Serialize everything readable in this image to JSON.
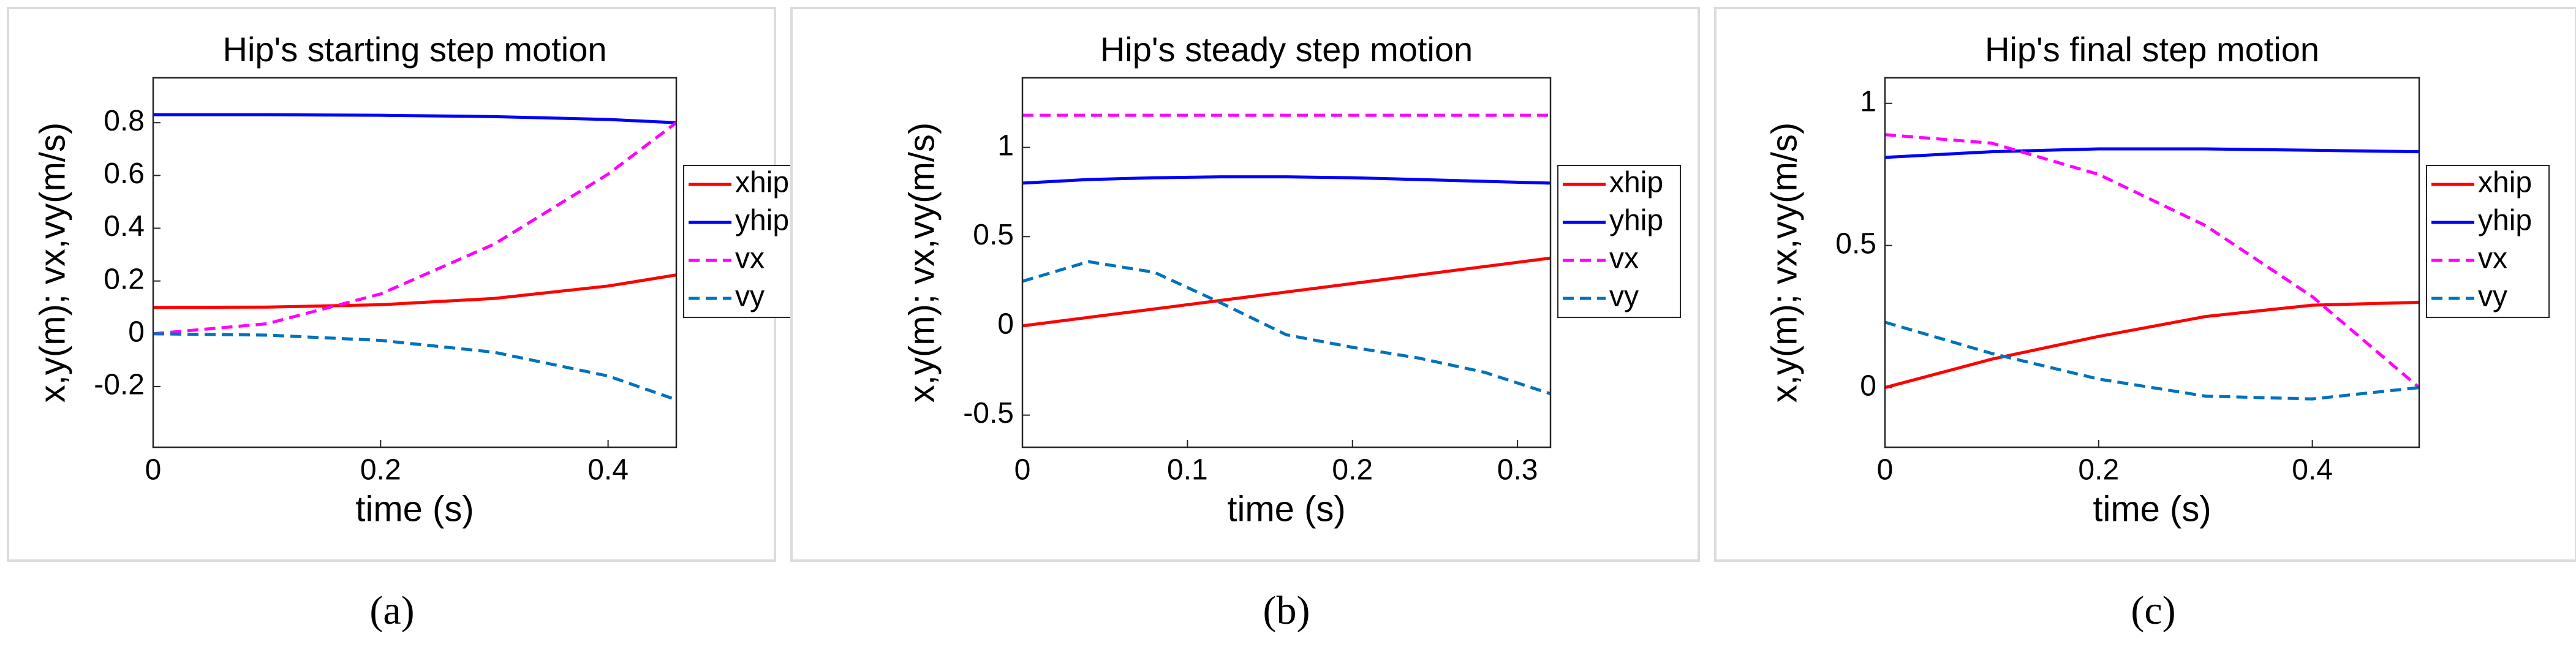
{
  "chart_data": [
    {
      "type": "line",
      "title": "Hip's starting step motion",
      "caption": "(a)",
      "xlabel": "time (s)",
      "ylabel": "x,y(m); vx,vy(m/s)",
      "x": [
        0,
        0.1,
        0.2,
        0.3,
        0.4,
        0.46
      ],
      "series": [
        {
          "name": "xhip",
          "color": "#ff0000",
          "line_style": "solid",
          "values": [
            0.1,
            0.101,
            0.11,
            0.134,
            0.181,
            0.223
          ]
        },
        {
          "name": "yhip",
          "color": "#0000ff",
          "line_style": "solid",
          "values": [
            0.83,
            0.83,
            0.828,
            0.823,
            0.812,
            0.8
          ]
        },
        {
          "name": "vx",
          "color": "#ff00ff",
          "line_style": "dashed",
          "values": [
            0,
            0.038,
            0.151,
            0.34,
            0.605,
            0.8
          ]
        },
        {
          "name": "vy",
          "color": "#0072bd",
          "line_style": "dashed",
          "values": [
            0,
            -0.005,
            -0.025,
            -0.07,
            -0.16,
            -0.25
          ]
        }
      ],
      "xlim": [
        0,
        0.46
      ],
      "xticks": [
        0,
        0.2,
        0.4
      ],
      "ylim": [
        -0.43,
        0.97
      ],
      "yticks": [
        -0.2,
        0,
        0.2,
        0.4,
        0.6,
        0.8
      ],
      "legend": "right-outside"
    },
    {
      "type": "line",
      "title": "Hip's steady step motion",
      "caption": "(b)",
      "xlabel": "time (s)",
      "ylabel": "x,y(m); vx,vy(m/s)",
      "x": [
        0,
        0.04,
        0.08,
        0.12,
        0.16,
        0.2,
        0.24,
        0.28,
        0.32
      ],
      "series": [
        {
          "name": "xhip",
          "color": "#ff0000",
          "line_style": "solid",
          "values": [
            0,
            0.0475,
            0.095,
            0.1425,
            0.19,
            0.2375,
            0.285,
            0.3325,
            0.38
          ]
        },
        {
          "name": "yhip",
          "color": "#0000ff",
          "line_style": "solid",
          "values": [
            0.8,
            0.82,
            0.83,
            0.835,
            0.835,
            0.83,
            0.82,
            0.81,
            0.8
          ]
        },
        {
          "name": "vx",
          "color": "#ff00ff",
          "line_style": "dashed",
          "values": [
            1.18,
            1.18,
            1.18,
            1.18,
            1.18,
            1.18,
            1.18,
            1.18,
            1.18
          ]
        },
        {
          "name": "vy",
          "color": "#0072bd",
          "line_style": "dashed",
          "values": [
            0.25,
            0.36,
            0.3,
            0.13,
            -0.05,
            -0.12,
            -0.18,
            -0.26,
            -0.38
          ]
        }
      ],
      "xlim": [
        0,
        0.32
      ],
      "xticks": [
        0,
        0.1,
        0.2,
        0.3
      ],
      "ylim": [
        -0.68,
        1.39
      ],
      "yticks": [
        -0.5,
        0,
        0.5,
        1
      ],
      "legend": "right-outside"
    },
    {
      "type": "line",
      "title": "Hip's final step motion",
      "caption": "(c)",
      "xlabel": "time (s)",
      "ylabel": "x,y(m); vx,vy(m/s)",
      "x": [
        0,
        0.1,
        0.2,
        0.3,
        0.4,
        0.5
      ],
      "series": [
        {
          "name": "xhip",
          "color": "#ff0000",
          "line_style": "solid",
          "values": [
            0,
            0.1,
            0.18,
            0.25,
            0.29,
            0.3
          ]
        },
        {
          "name": "yhip",
          "color": "#0000ff",
          "line_style": "solid",
          "values": [
            0.81,
            0.83,
            0.84,
            0.84,
            0.835,
            0.83
          ]
        },
        {
          "name": "vx",
          "color": "#ff00ff",
          "line_style": "dashed",
          "values": [
            0.89,
            0.86,
            0.75,
            0.57,
            0.32,
            0
          ]
        },
        {
          "name": "vy",
          "color": "#0072bd",
          "line_style": "dashed",
          "values": [
            0.23,
            0.12,
            0.03,
            -0.03,
            -0.04,
            0
          ]
        }
      ],
      "xlim": [
        0,
        0.5
      ],
      "xticks": [
        0,
        0.2,
        0.4
      ],
      "ylim": [
        -0.21,
        1.09
      ],
      "yticks": [
        0,
        0.5,
        1
      ],
      "legend": "right-outside"
    }
  ]
}
